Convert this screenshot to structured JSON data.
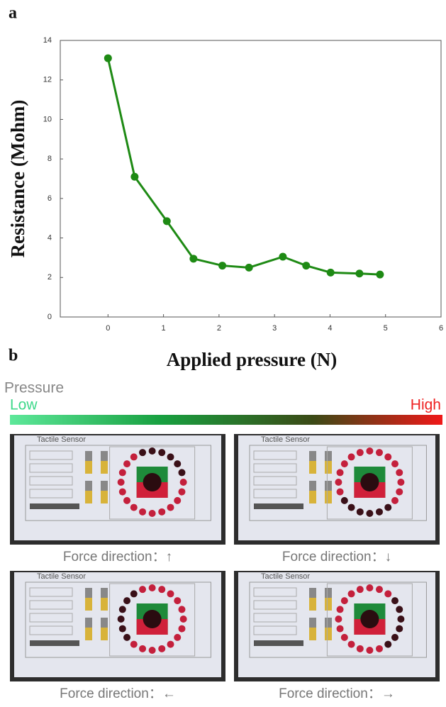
{
  "chart_data": {
    "type": "line",
    "y_label": "Resistance (Mohm)",
    "x_label": "Applied pressure (N)",
    "x": [
      0,
      0.48,
      1.06,
      1.54,
      2.06,
      2.54,
      3.15,
      3.57,
      4.01,
      4.53,
      4.9
    ],
    "series": [
      {
        "color": "#1e8a14",
        "values": [
          13.1,
          7.1,
          4.85,
          2.95,
          2.6,
          2.5,
          3.05,
          2.6,
          2.25,
          2.2,
          2.15
        ]
      }
    ],
    "xlim": [
      -0.86,
      6
    ],
    "xticks": [
      0,
      1,
      2,
      3,
      4,
      5,
      6
    ],
    "ylim": [
      0,
      14
    ],
    "yticks": [
      0,
      2,
      4,
      6,
      8,
      10,
      12,
      14
    ],
    "grid": false
  },
  "panel_labels": [
    "a",
    "b"
  ],
  "pressure_scale": {
    "title": "Pressure",
    "low": "Low",
    "high": "High"
  },
  "photos": [
    {
      "screen_title": "Tactile Sensor",
      "caption": "Force direction：↑"
    },
    {
      "screen_title": "Tactile Sensor",
      "caption": "Force direction：↓"
    },
    {
      "screen_title": "Tactile Sensor",
      "caption": "Force direction：←"
    },
    {
      "screen_title": "Tactile Sensor",
      "caption": "Force direction：→"
    }
  ]
}
